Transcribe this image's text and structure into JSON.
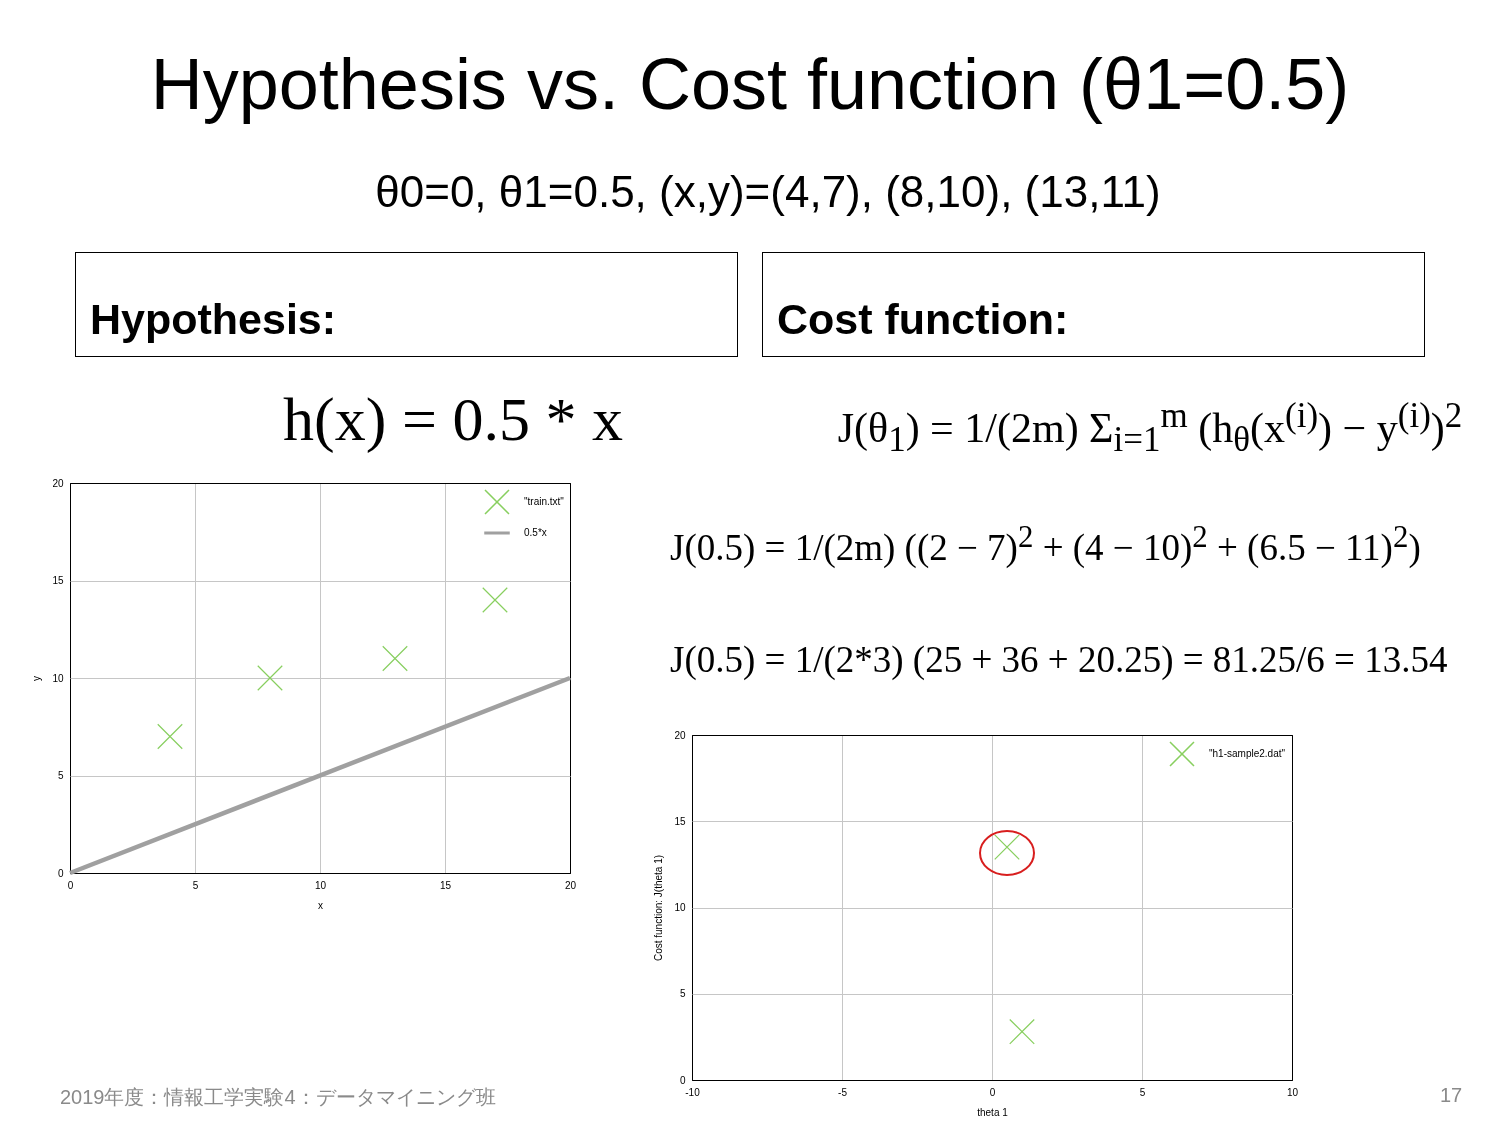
{
  "chart_data": [
    {
      "type": "other",
      "title": "Hypothesis vs. Cost function (θ1=0.5)",
      "subtitle": "θ0=0, θ1=0.5, (x,y)=(4,7), (8,10), (13,11)",
      "annotations": [
        "2019年度：情報工学実験4：データマイニング班",
        "17"
      ]
    },
    {
      "type": "scatter",
      "title": "Hypothesis:",
      "annotations": [
        "h(x) = 0.5 * x"
      ],
      "xlabel": "x",
      "ylabel": "y",
      "xlim": [
        0,
        20
      ],
      "ylim": [
        0,
        20
      ],
      "xticks": [
        0,
        5,
        10,
        15,
        20
      ],
      "yticks": [
        0,
        5,
        10,
        15,
        20
      ],
      "grid": true,
      "legend": "top right",
      "marker": "cross",
      "series": [
        {
          "name": "\"train.txt\"",
          "color": "#88cf5f",
          "x": [
            4,
            8,
            13,
            17
          ],
          "values": [
            7,
            10,
            11,
            14
          ]
        },
        {
          "name": "0.5*x",
          "type": "line",
          "marker": "none",
          "color": "#a0a0a0",
          "x": [
            0,
            20
          ],
          "values": [
            0,
            10
          ]
        }
      ]
    },
    {
      "type": "scatter",
      "title": "Cost function:",
      "annotations": [
        "J(θ$_{1}$) = 1/(2m) Σ$_{i=1}$$^{m}$ (h$_{θ}$(x$^{(i)}$) − y$^{(i)}$)$^{2}$",
        "J(0.5) = 1/(2m) ((2 − 7)$^{2}$ + (4 − 10)$^{2}$ + (6.5 − 11)$^{2}$)",
        "J(0.5) = 1/(2*3) (25 + 36 + 20.25) = 81.25/6 = 13.54"
      ],
      "xlabel": "theta 1",
      "ylabel": "Cost function: J(theta 1)",
      "xlim": [
        -10,
        10
      ],
      "ylim": [
        0,
        20
      ],
      "xticks": [
        -10,
        -5,
        0,
        5,
        10
      ],
      "yticks": [
        0,
        5,
        10,
        15,
        20
      ],
      "grid": true,
      "legend": "top right",
      "marker": "cross",
      "series": [
        {
          "name": "\"h1-sample2.dat\"",
          "color": "#88cf5f",
          "x": [
            0.5,
            1
          ],
          "values": [
            13.5,
            2.8
          ]
        }
      ]
    }
  ]
}
